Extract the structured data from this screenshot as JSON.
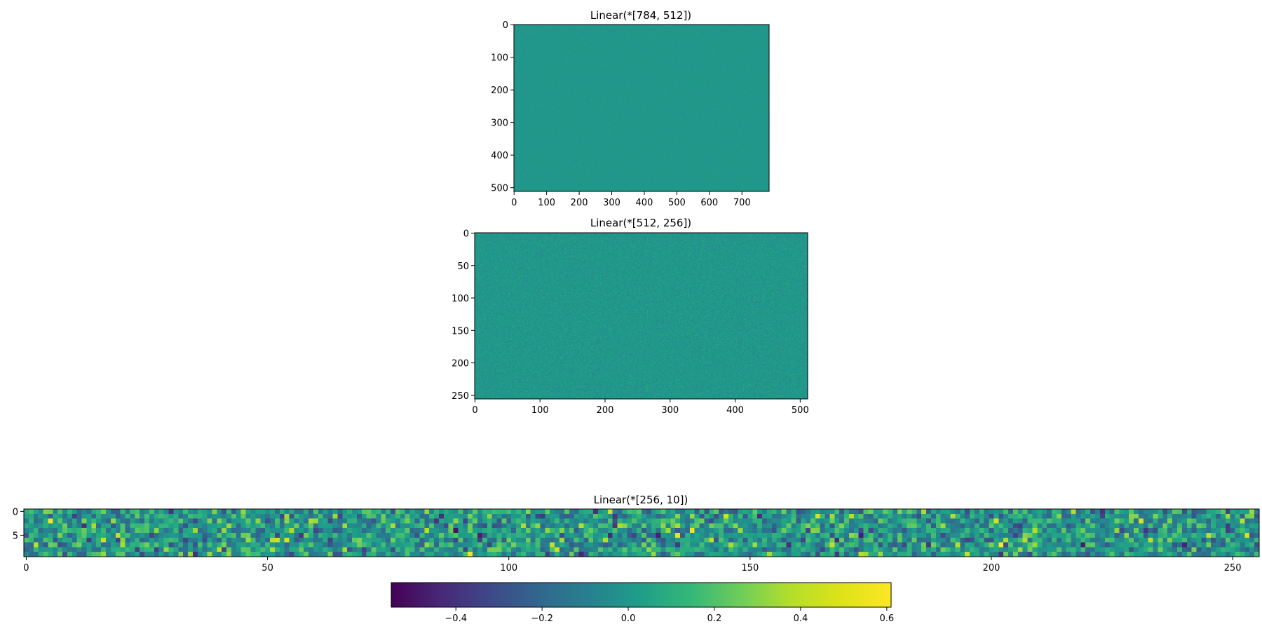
{
  "chart_data": [
    {
      "type": "heatmap",
      "title": "Linear(*[784, 512])",
      "x_ticks": [
        0,
        100,
        200,
        300,
        400,
        500,
        600,
        700
      ],
      "y_ticks": [
        0,
        100,
        200,
        300,
        400,
        500
      ],
      "xlim": [
        -0.5,
        783.5
      ],
      "ylim": [
        511.5,
        -0.5
      ],
      "shape": [
        512,
        784
      ],
      "value_summary": "dense noise near 0.0 (approx -0.05 to 0.05)"
    },
    {
      "type": "heatmap",
      "title": "Linear(*[512, 256])",
      "x_ticks": [
        0,
        100,
        200,
        300,
        400,
        500
      ],
      "y_ticks": [
        0,
        50,
        100,
        150,
        200,
        250
      ],
      "xlim": [
        -0.5,
        511.5
      ],
      "ylim": [
        255.5,
        -0.5
      ],
      "shape": [
        256,
        512
      ],
      "value_summary": "dense noise near 0.0 (approx -0.08 to 0.08)"
    },
    {
      "type": "heatmap",
      "title": "Linear(*[256, 10])",
      "x_ticks": [
        0,
        50,
        100,
        150,
        200,
        250
      ],
      "y_ticks": [
        0,
        5
      ],
      "xlim": [
        -0.5,
        255.5
      ],
      "ylim": [
        9.5,
        -0.5
      ],
      "shape": [
        10,
        256
      ],
      "value_summary": "coarse cells, values spanning roughly -0.55 to 0.6"
    }
  ],
  "colorbar": {
    "colormap": "viridis",
    "range": [
      -0.55,
      0.61
    ],
    "ticks": [
      -0.4,
      -0.2,
      0.0,
      0.2,
      0.4,
      0.6
    ],
    "tick_labels": [
      "−0.4",
      "−0.2",
      "0.0",
      "0.2",
      "0.4",
      "0.6"
    ]
  }
}
